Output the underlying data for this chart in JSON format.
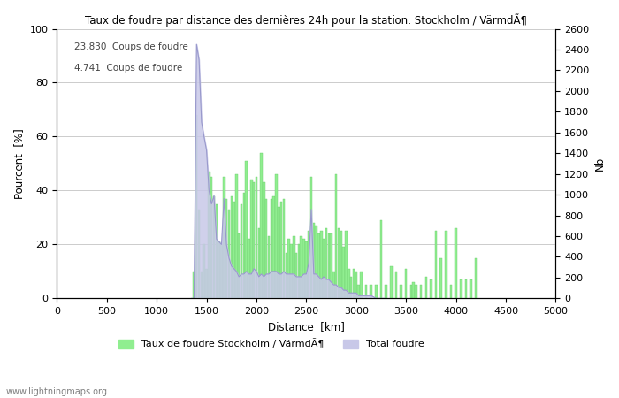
{
  "title": "Taux de foudre par distance des dernières 24h pour la station: Stockholm / VärmdÃ¶",
  "xlabel": "Distance  [km]",
  "ylabel_left": "Pourcent  [%]",
  "ylabel_right": "Nb",
  "annotation_line1": "23.830  Coups de foudre",
  "annotation_line2": "4.741  Coups de foudre",
  "watermark": "www.lightningmaps.org",
  "legend_label1": "Taux de foudre Stockholm / VärmdÃ¶",
  "legend_label2": "Total foudre",
  "xlim": [
    0,
    5000
  ],
  "ylim_left": [
    0,
    100
  ],
  "ylim_right": [
    0,
    2600
  ],
  "xticks": [
    0,
    500,
    1000,
    1500,
    2000,
    2500,
    3000,
    3500,
    4000,
    4500,
    5000
  ],
  "yticks_left": [
    0,
    20,
    40,
    60,
    80,
    100
  ],
  "yticks_right": [
    0,
    200,
    400,
    600,
    800,
    1000,
    1200,
    1400,
    1600,
    1800,
    2000,
    2200,
    2400,
    2600
  ],
  "bar_color": "#90ee90",
  "bar_edge_color": "#6dcc6d",
  "line_color": "#9999cc",
  "line_fill_color": "#c8c8e8",
  "background_color": "#ffffff",
  "grid_color": "#cccccc",
  "bar_distances": [
    1375,
    1400,
    1425,
    1450,
    1475,
    1500,
    1525,
    1550,
    1575,
    1600,
    1625,
    1650,
    1675,
    1700,
    1725,
    1750,
    1775,
    1800,
    1825,
    1850,
    1875,
    1900,
    1925,
    1950,
    1975,
    2000,
    2025,
    2050,
    2075,
    2100,
    2125,
    2150,
    2175,
    2200,
    2225,
    2250,
    2275,
    2300,
    2325,
    2350,
    2375,
    2400,
    2425,
    2450,
    2475,
    2500,
    2525,
    2550,
    2575,
    2600,
    2625,
    2650,
    2675,
    2700,
    2725,
    2750,
    2775,
    2800,
    2825,
    2850,
    2875,
    2900,
    2925,
    2950,
    2975,
    3000,
    3025,
    3050,
    3100,
    3150,
    3200,
    3250,
    3300,
    3350,
    3400,
    3450,
    3500,
    3550,
    3575,
    3600,
    3650,
    3700,
    3750,
    3800,
    3850,
    3900,
    3950,
    4000,
    4050,
    4100,
    4150,
    4200
  ],
  "bar_values": [
    10,
    68,
    33,
    10,
    20,
    11,
    47,
    45,
    38,
    35,
    21,
    20,
    45,
    37,
    33,
    38,
    36,
    46,
    24,
    35,
    39,
    51,
    22,
    44,
    43,
    45,
    26,
    54,
    43,
    37,
    23,
    37,
    38,
    46,
    34,
    36,
    37,
    17,
    22,
    20,
    23,
    17,
    20,
    23,
    22,
    21,
    25,
    45,
    28,
    27,
    24,
    25,
    22,
    26,
    24,
    24,
    10,
    46,
    26,
    25,
    19,
    25,
    11,
    8,
    11,
    10,
    5,
    10,
    5,
    5,
    5,
    29,
    5,
    12,
    10,
    5,
    11,
    5,
    6,
    5,
    5,
    8,
    7,
    25,
    15,
    25,
    5,
    26,
    7,
    7,
    7,
    15
  ],
  "line_distances": [
    1350,
    1375,
    1400,
    1425,
    1450,
    1475,
    1500,
    1525,
    1550,
    1575,
    1600,
    1625,
    1650,
    1675,
    1700,
    1725,
    1750,
    1775,
    1800,
    1825,
    1850,
    1875,
    1900,
    1925,
    1950,
    1975,
    2000,
    2025,
    2050,
    2075,
    2100,
    2125,
    2150,
    2175,
    2200,
    2225,
    2250,
    2275,
    2300,
    2325,
    2350,
    2375,
    2400,
    2425,
    2450,
    2475,
    2500,
    2525,
    2550,
    2575,
    2600,
    2625,
    2650,
    2675,
    2700,
    2725,
    2750,
    2775,
    2800,
    2825,
    2850,
    2875,
    2900,
    2925,
    2950,
    2975,
    3000,
    3025,
    3050,
    3100,
    3150,
    3200,
    3250,
    3300
  ],
  "line_values_nb": [
    0,
    0,
    2450,
    2300,
    1700,
    1560,
    1430,
    1040,
    910,
    988,
    572,
    546,
    520,
    962,
    520,
    390,
    312,
    286,
    260,
    208,
    234,
    234,
    260,
    234,
    234,
    286,
    260,
    208,
    234,
    208,
    234,
    234,
    260,
    260,
    260,
    234,
    234,
    260,
    234,
    234,
    234,
    234,
    208,
    208,
    208,
    234,
    234,
    338,
    858,
    234,
    234,
    208,
    182,
    208,
    182,
    182,
    156,
    130,
    130,
    104,
    104,
    78,
    78,
    52,
    52,
    52,
    52,
    26,
    26,
    26,
    26,
    0,
    0,
    0
  ]
}
